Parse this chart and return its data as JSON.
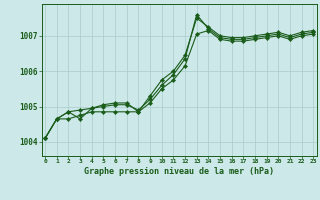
{
  "title": "Graphe pression niveau de la mer (hPa)",
  "bg_color": "#cce8e8",
  "plot_bg_color": "#cce8e8",
  "grid_color": "#aacccc",
  "line_color": "#1a5c1a",
  "marker_color": "#1a5c1a",
  "label_color": "#1a5c1a",
  "xlim": [
    -0.3,
    23.3
  ],
  "ylim": [
    1003.6,
    1007.9
  ],
  "yticks": [
    1004,
    1005,
    1006,
    1007
  ],
  "xticks": [
    0,
    1,
    2,
    3,
    4,
    5,
    6,
    7,
    8,
    9,
    10,
    11,
    12,
    13,
    14,
    15,
    16,
    17,
    18,
    19,
    20,
    21,
    22,
    23
  ],
  "series": [
    [
      1004.1,
      1004.65,
      1004.85,
      1004.65,
      1004.95,
      1005.05,
      1005.1,
      1005.1,
      1004.85,
      1005.3,
      1005.75,
      1006.0,
      1006.45,
      1007.5,
      1007.25,
      1007.0,
      1006.95,
      1006.95,
      1007.0,
      1007.05,
      1007.1,
      1007.0,
      1007.1,
      1007.15
    ],
    [
      1004.1,
      1004.65,
      1004.85,
      1004.9,
      1004.95,
      1005.0,
      1005.05,
      1005.05,
      1004.9,
      1005.2,
      1005.6,
      1005.9,
      1006.35,
      1007.6,
      1007.2,
      1006.95,
      1006.9,
      1006.9,
      1006.95,
      1007.0,
      1007.05,
      1006.95,
      1007.05,
      1007.1
    ],
    [
      1004.1,
      1004.65,
      1004.65,
      1004.75,
      1004.85,
      1004.85,
      1004.85,
      1004.85,
      1004.85,
      1005.1,
      1005.5,
      1005.75,
      1006.15,
      1007.05,
      1007.15,
      1006.9,
      1006.85,
      1006.85,
      1006.9,
      1006.95,
      1007.0,
      1006.9,
      1007.0,
      1007.05
    ]
  ]
}
